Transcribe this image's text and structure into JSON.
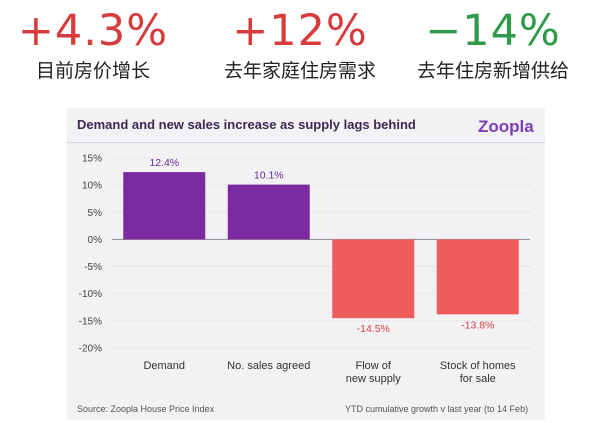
{
  "headline_stats": [
    {
      "value": "+4.3%",
      "label": "目前房价增长",
      "color": "#d83b3b"
    },
    {
      "value": "+12%",
      "label": "去年家庭住房需求",
      "color": "#d83b3b"
    },
    {
      "value": "−14%",
      "label": "去年住房新增供给",
      "color": "#2e9a4a"
    }
  ],
  "chart": {
    "brand": "Zoopla",
    "source": "Source: Zoopla House Price Index",
    "note": "YTD cumulative growth v last year (to 14 Feb)"
  },
  "chart_data": {
    "type": "bar",
    "title": "Demand and new sales increase as supply lags behind",
    "categories": [
      [
        "Demand"
      ],
      [
        "No. sales agreed"
      ],
      [
        "Flow of",
        "new supply"
      ],
      [
        "Stock of homes",
        "for sale"
      ]
    ],
    "values": [
      12.4,
      10.1,
      -14.5,
      -13.8
    ],
    "value_labels": [
      "12.4%",
      "10.1%",
      "-14.5%",
      "-13.8%"
    ],
    "colors": [
      "#7b2aa0",
      "#7b2aa0",
      "#ee5c5c",
      "#ee5c5c"
    ],
    "label_colors": [
      "#6b2a90",
      "#6b2a90",
      "#d84444",
      "#d84444"
    ],
    "y_ticks": [
      "15%",
      "10%",
      "5%",
      "0%",
      "-5%",
      "-10%",
      "-15%",
      "-20%"
    ],
    "y_tick_values": [
      15,
      10,
      5,
      0,
      -5,
      -10,
      -15,
      -20
    ],
    "ylim": [
      -20,
      15
    ],
    "grid": true
  }
}
